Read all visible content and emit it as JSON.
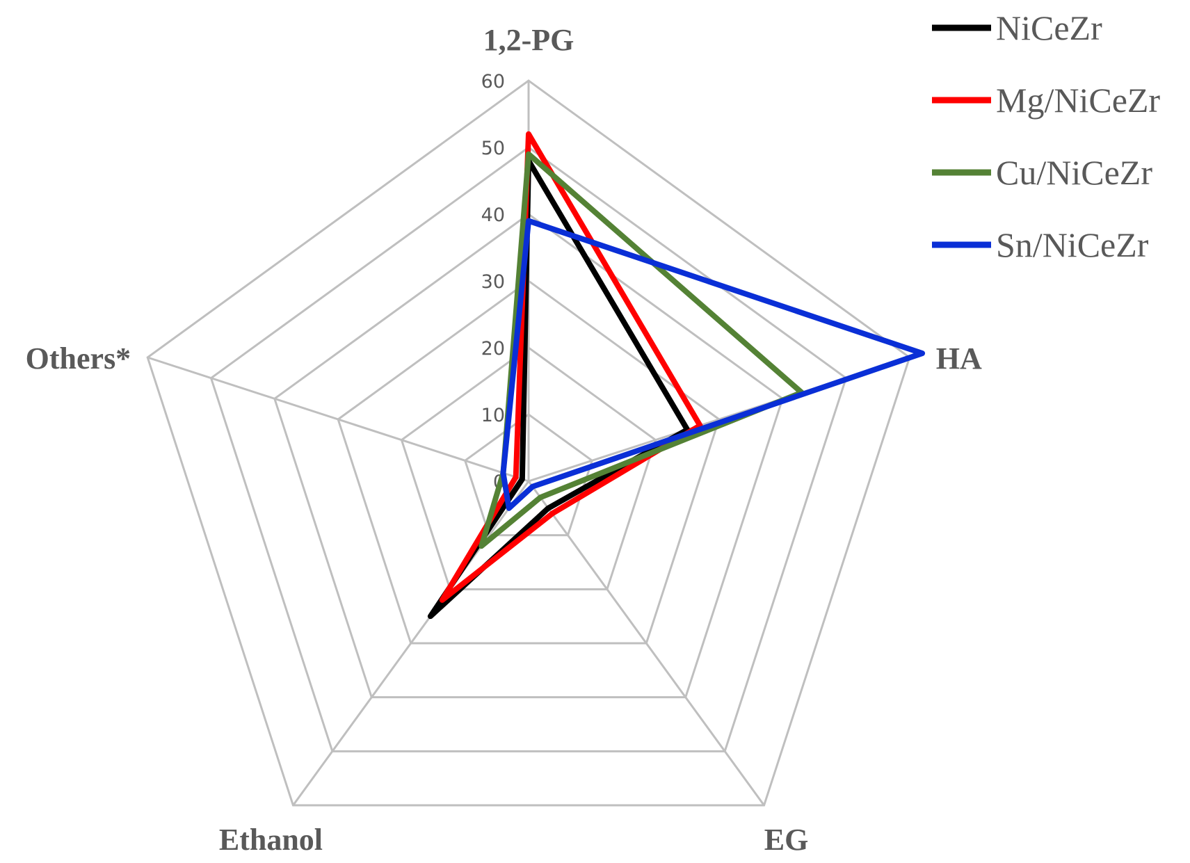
{
  "chart_data": {
    "type": "radar",
    "title": "",
    "axes": [
      "1,2-PG",
      "HA",
      "EG",
      "Ethanol",
      "Others*"
    ],
    "r_ticks": [
      "0",
      "10",
      "20",
      "30",
      "40",
      "50",
      "60"
    ],
    "r_range": [
      0,
      60
    ],
    "grid": true,
    "legend_position": "top-right",
    "series": [
      {
        "name": "NiCeZr",
        "color": "#000000",
        "values": [
          48,
          25,
          5,
          25,
          1
        ]
      },
      {
        "name": "Mg/NiCeZr",
        "color": "#ff0000",
        "values": [
          52,
          27,
          6,
          22,
          2
        ]
      },
      {
        "name": "Cu/NiCeZr",
        "color": "#548235",
        "values": [
          49,
          43,
          3,
          12,
          4
        ]
      },
      {
        "name": "Sn/NiCeZr",
        "color": "#0a2fd6",
        "values": [
          39,
          62,
          1,
          5,
          4
        ]
      }
    ]
  }
}
